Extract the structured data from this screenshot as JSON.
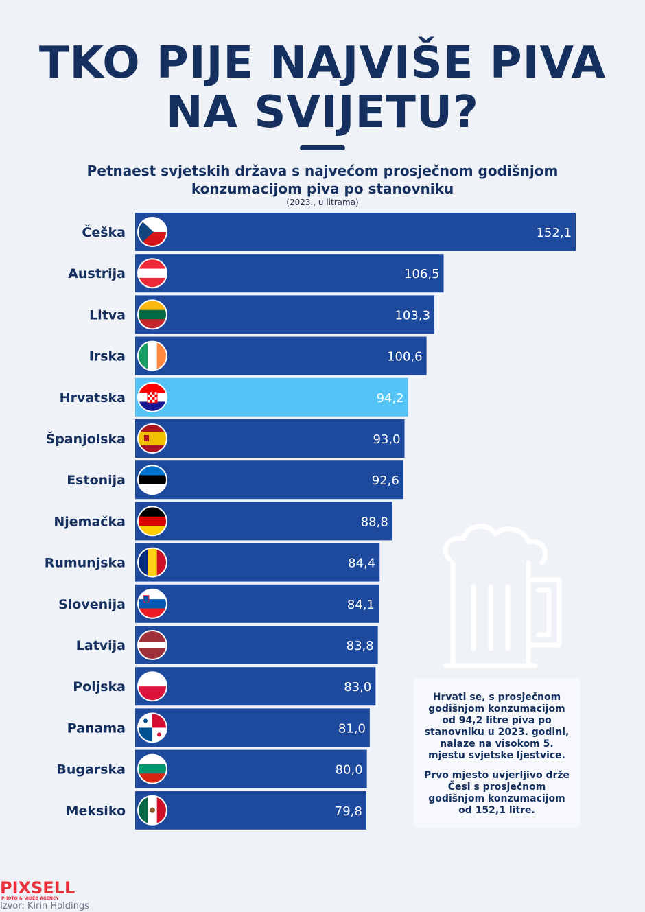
{
  "title": {
    "line1": "TKO PIJE NAJVIŠE PIVA",
    "line2": "NA SVIJETU?"
  },
  "subtitle": {
    "line1": "Petnaest svjetskih država s najvećom prosječnom godišnjom",
    "line2": "konzumacijom piva po stanovniku"
  },
  "unit_note": "(2023., u litrama)",
  "note": {
    "p1": "Hrvati se, s prosječnom godišnjom konzumacijom od 94,2 litre piva po stanovniku u 2023. godini, nalaze na visokom 5. mjestu svjetske ljestvice.",
    "p2": "Prvo mjesto uvjerljivo drže Česi s prosječnom godišnjom konzumacijom od 152,1 litre."
  },
  "logo": {
    "name": "PIXSELL",
    "tagline": "PHOTO & VIDEO AGENCY"
  },
  "source": "Izvor: Kirin Holdings",
  "colors": {
    "bar": "#1e4a9e",
    "highlight_bar": "#55c3f5",
    "text": "#15305f",
    "background": "#eff2f7"
  },
  "chart_data": {
    "type": "bar",
    "orientation": "horizontal",
    "categories": [
      "Češka",
      "Austrija",
      "Litva",
      "Irska",
      "Hrvatska",
      "Španjolska",
      "Estonija",
      "Njemačka",
      "Rumunjska",
      "Slovenija",
      "Latvija",
      "Poljska",
      "Panama",
      "Bugarska",
      "Meksiko"
    ],
    "values": [
      152.1,
      106.5,
      103.3,
      100.6,
      94.2,
      93.0,
      92.6,
      88.8,
      84.4,
      84.1,
      83.8,
      83.0,
      81.0,
      80.0,
      79.8
    ],
    "value_labels": [
      "152,1",
      "106,5",
      "103,3",
      "100,6",
      "94,2",
      "93,0",
      "92,6",
      "88,8",
      "84,4",
      "84,1",
      "83,8",
      "83,0",
      "81,0",
      "80,0",
      "79,8"
    ],
    "highlight": "Hrvatska",
    "flags": [
      "czech-flag-icon",
      "austria-flag-icon",
      "lithuania-flag-icon",
      "ireland-flag-icon",
      "croatia-flag-icon",
      "spain-flag-icon",
      "estonia-flag-icon",
      "germany-flag-icon",
      "romania-flag-icon",
      "slovenia-flag-icon",
      "latvia-flag-icon",
      "poland-flag-icon",
      "panama-flag-icon",
      "bulgaria-flag-icon",
      "mexico-flag-icon"
    ],
    "xlim": [
      0,
      152.1
    ],
    "grid": false,
    "legend": "none"
  }
}
